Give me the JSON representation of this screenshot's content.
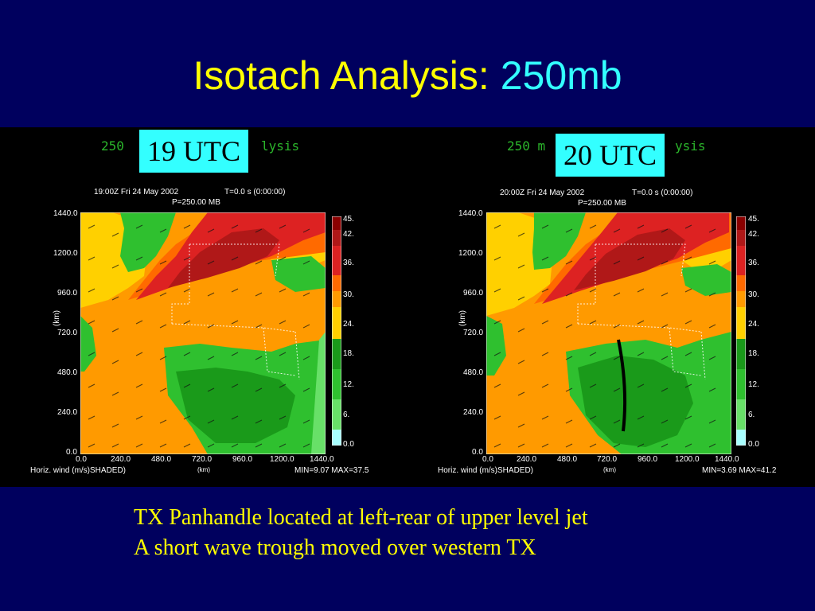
{
  "slide": {
    "title_main": "Isotach Analysis:",
    "title_accent": "250mb",
    "notes": [
      "TX Panhandle located at left-rear of upper level jet",
      "A short wave trough moved over western TX"
    ]
  },
  "panels": [
    {
      "utc_label": "19 UTC",
      "header_left": "250",
      "header_right": "lysis",
      "timestamp": "19:00Z Fri 24 May 2002",
      "tvalue": "T=0.0 s (0:00:00)",
      "pressure": "P=250.00 MB",
      "yticks": [
        "1440.0",
        "1200.0",
        "960.0",
        "720.0",
        "480.0",
        "240.0",
        "0.0"
      ],
      "xticks": [
        "0.0",
        "240.0",
        "480.0",
        "720.0",
        "960.0",
        "1200.0",
        "1440.0"
      ],
      "colorbar_labels": [
        "45.",
        "42.",
        "36.",
        "30.",
        "24.",
        "18.",
        "12.",
        "6.",
        "0.0"
      ],
      "ylabel": "(km)",
      "xlabel": "(km)",
      "field_label": "Horiz. wind (m/s)SHADED)",
      "minmax": "MIN=9.07 MAX=37.5"
    },
    {
      "utc_label": "20 UTC",
      "header_left": "250  m",
      "header_right": "ysis",
      "timestamp": "20:00Z Fri 24 May 2002",
      "tvalue": "T=0.0 s (0:00:00)",
      "pressure": "P=250.00 MB",
      "yticks": [
        "1440.0",
        "1200.0",
        "960.0",
        "720.0",
        "480.0",
        "240.0",
        "0.0"
      ],
      "xticks": [
        "0.0",
        "240.0",
        "480.0",
        "720.0",
        "960.0",
        "1200.0",
        "1440.0"
      ],
      "colorbar_labels": [
        "45.",
        "42.",
        "36.",
        "30.",
        "24.",
        "18.",
        "12.",
        "6.",
        "0.0"
      ],
      "ylabel": "(km)",
      "xlabel": "(km)",
      "field_label": "Horiz. wind (m/s)SHADED)",
      "minmax": "MIN=3.69 MAX=41.2"
    }
  ],
  "colors": {
    "background": "#00005e",
    "title": "#ffff00",
    "accent": "#33ffff",
    "utc_box": "#33ffff",
    "colorbar": [
      "#8b0000",
      "#b01818",
      "#dd2222",
      "#ff6a00",
      "#ff9a00",
      "#ffd000",
      "#1a9a1a",
      "#2fc02f",
      "#68e068",
      "#a8ffff"
    ]
  }
}
